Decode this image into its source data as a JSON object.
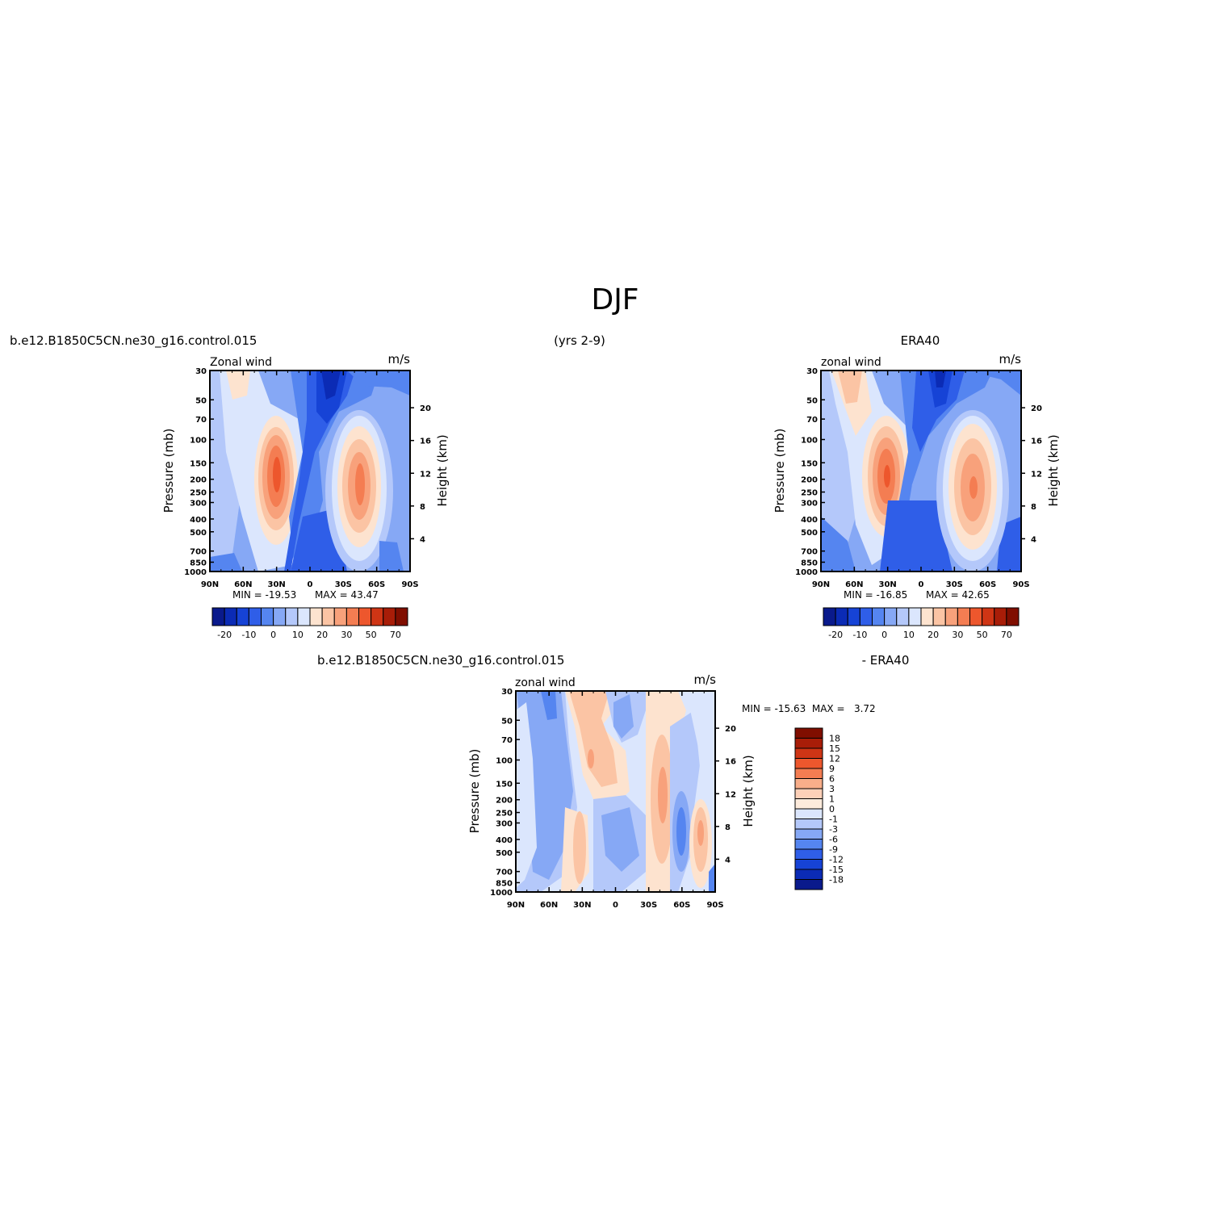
{
  "page": {
    "season_title": "DJF",
    "years_label": "(yrs 2-9)",
    "left_case": "b.e12.B1850C5CN.ne30_g16.control.015",
    "right_case": "ERA40",
    "diff_case": "b.e12.B1850C5CN.ne30_g16.control.015",
    "diff_minus": "- ERA40"
  },
  "chart_data": [
    {
      "type": "heatmap",
      "panel": "model",
      "title": "Zonal wind",
      "units": "m/s",
      "ylabel": "Pressure (mb)",
      "ylabel_right": "Height (km)",
      "x_ticks": [
        "90N",
        "60N",
        "30N",
        "0",
        "30S",
        "60S",
        "90S"
      ],
      "x_range": [
        90,
        -90
      ],
      "y_ticks": [
        30,
        50,
        70,
        100,
        150,
        200,
        250,
        300,
        400,
        500,
        700,
        850,
        1000
      ],
      "y_scale": "log",
      "height_ticks": [
        20,
        16,
        12,
        8,
        4
      ],
      "min": -19.53,
      "max": 43.47,
      "min_label": "MIN = -19.53",
      "max_label": "MAX =  43.47",
      "colorbar_labels": [
        "-20",
        "-10",
        "0",
        "10",
        "20",
        "30",
        "50",
        "70"
      ],
      "features": [
        {
          "lat": 28,
          "p": 200,
          "value": 43.5,
          "desc": "northern subtropical jet core"
        },
        {
          "lat": -45,
          "p": 250,
          "value": 35,
          "desc": "southern jet core"
        },
        {
          "lat": -15,
          "p": 40,
          "value": -19.5,
          "desc": "tropical stratospheric easterlies"
        },
        {
          "lat": 80,
          "p": 40,
          "value": 15,
          "desc": "north polar upper"
        }
      ]
    },
    {
      "type": "heatmap",
      "panel": "obs",
      "title": "zonal wind",
      "units": "m/s",
      "ylabel": "Pressure (mb)",
      "ylabel_right": "Height (km)",
      "x_ticks": [
        "90N",
        "60N",
        "30N",
        "0",
        "30S",
        "60S",
        "90S"
      ],
      "x_range": [
        90,
        -90
      ],
      "y_ticks": [
        30,
        50,
        70,
        100,
        150,
        200,
        250,
        300,
        400,
        500,
        700,
        850,
        1000
      ],
      "y_scale": "log",
      "height_ticks": [
        20,
        16,
        12,
        8,
        4
      ],
      "min": -16.85,
      "max": 42.65,
      "min_label": "MIN = -16.85",
      "max_label": "MAX =  42.65",
      "colorbar_labels": [
        "-20",
        "-10",
        "0",
        "10",
        "20",
        "30",
        "50",
        "70"
      ],
      "features": [
        {
          "lat": 30,
          "p": 200,
          "value": 42.6,
          "desc": "northern subtropical jet core"
        },
        {
          "lat": -47,
          "p": 250,
          "value": 32,
          "desc": "southern jet core"
        },
        {
          "lat": -15,
          "p": 40,
          "value": -16.9,
          "desc": "tropical stratospheric easterlies"
        },
        {
          "lat": 70,
          "p": 40,
          "value": 18,
          "desc": "north polar upper"
        }
      ]
    },
    {
      "type": "heatmap",
      "panel": "difference",
      "title": "zonal wind",
      "units": "m/s",
      "ylabel": "Pressure (mb)",
      "ylabel_right": "Height (km)",
      "x_ticks": [
        "90N",
        "60N",
        "30N",
        "0",
        "30S",
        "60S",
        "90S"
      ],
      "x_range": [
        90,
        -90
      ],
      "y_ticks": [
        30,
        50,
        70,
        100,
        150,
        200,
        250,
        300,
        400,
        500,
        700,
        850,
        1000
      ],
      "y_scale": "log",
      "height_ticks": [
        20,
        16,
        12,
        8,
        4
      ],
      "min": -15.63,
      "max": 3.72,
      "min_max_label": "MIN = -15.63  MAX =   3.72",
      "colorbar_labels": [
        "18",
        "15",
        "12",
        "9",
        "6",
        "3",
        "1",
        "0",
        "-1",
        "-3",
        "-6",
        "-9",
        "-12",
        "-15",
        "-18"
      ],
      "colorbar_orientation": "vertical",
      "features": [
        {
          "lat": 25,
          "p": 100,
          "value": 3.7,
          "desc": "positive upper tropics"
        },
        {
          "lat": -42,
          "p": 200,
          "value": 3.5,
          "desc": "positive southern jet flank"
        },
        {
          "lat": 60,
          "p": 150,
          "value": -6,
          "desc": "negative northern mid-latitude"
        },
        {
          "lat": -58,
          "p": 350,
          "value": -9,
          "desc": "negative southern"
        }
      ]
    }
  ],
  "colors": {
    "wind_scale": [
      "#0a1a8c",
      "#0b2bb5",
      "#1643d6",
      "#2f5ee8",
      "#5585f0",
      "#86a8f5",
      "#b4c8fa",
      "#dbe6fd",
      "#fde3cf",
      "#fbc4a4",
      "#f8a17b",
      "#f47d52",
      "#ed572d",
      "#cf3515",
      "#a81d08",
      "#800e00"
    ],
    "diff_scale": [
      "#0a1a8c",
      "#0b2bb5",
      "#1643d6",
      "#2f5ee8",
      "#5585f0",
      "#86a8f5",
      "#b4c8fa",
      "#dbe6fd",
      "#fdebdc",
      "#fdd0b8",
      "#f9ae8a",
      "#f47d52",
      "#ed572d",
      "#cf3515",
      "#a81d08",
      "#800e00"
    ]
  }
}
